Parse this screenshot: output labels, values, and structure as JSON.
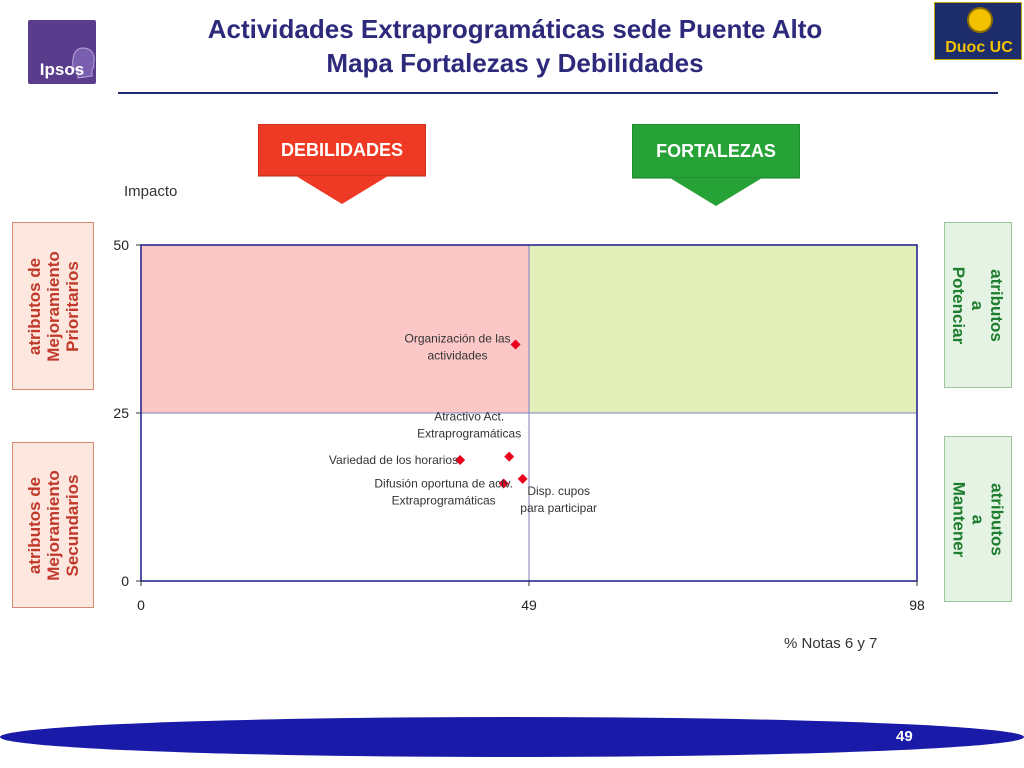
{
  "header": {
    "title_line1": "Actividades Extraprogramáticas sede Puente Alto",
    "title_line2": "Mapa Fortalezas y Debilidades"
  },
  "logos": {
    "ipsos": "Ipsos",
    "duoc": "Duoc UC"
  },
  "arrows": {
    "debilidades": "DEBILIDADES",
    "fortalezas": "FORTALEZAS"
  },
  "side_labels": {
    "prioritarios": "atributos de Mejoramiento Prioritarios",
    "secundarios": "atributos de Mejoramiento Secundarios",
    "potenciar": "atributos a Potenciar",
    "mantener": "atributos a Mantener"
  },
  "chart_data": {
    "type": "scatter",
    "title": "",
    "xlabel": "% Notas 6 y 7",
    "ylabel": "Impacto",
    "xlim": [
      0,
      98
    ],
    "ylim": [
      0,
      50
    ],
    "xticks": [
      "0",
      "49",
      "98"
    ],
    "yticks": [
      "0",
      "25",
      "50"
    ],
    "x_threshold": 49,
    "y_threshold": 25,
    "grid": false,
    "legend": "none",
    "quadrant_colors": {
      "top_left": "#fbc7c7",
      "top_right": "#e2efb8"
    },
    "point_color": "#e8001c",
    "points": [
      {
        "label": "Organización de las actividades",
        "x": 47.3,
        "y": 35.2
      },
      {
        "label": "Atractivo Act. Extraprogramáticas",
        "x": 46.5,
        "y": 18.5
      },
      {
        "label": "Variedad de los horarios",
        "x": 40.3,
        "y": 18.0
      },
      {
        "label": "Difusión oportuna de actv. Extraprogramáticas",
        "x": 45.8,
        "y": 14.5
      },
      {
        "label": "Disp. cupos para participar",
        "x": 48.2,
        "y": 15.2
      }
    ]
  },
  "footer": {
    "page_number": "49"
  },
  "colors": {
    "title": "#2d2a7c",
    "debilidades": "#ee3a24",
    "fortalezas": "#27a237",
    "footer_bar": "#1a1aa8"
  }
}
